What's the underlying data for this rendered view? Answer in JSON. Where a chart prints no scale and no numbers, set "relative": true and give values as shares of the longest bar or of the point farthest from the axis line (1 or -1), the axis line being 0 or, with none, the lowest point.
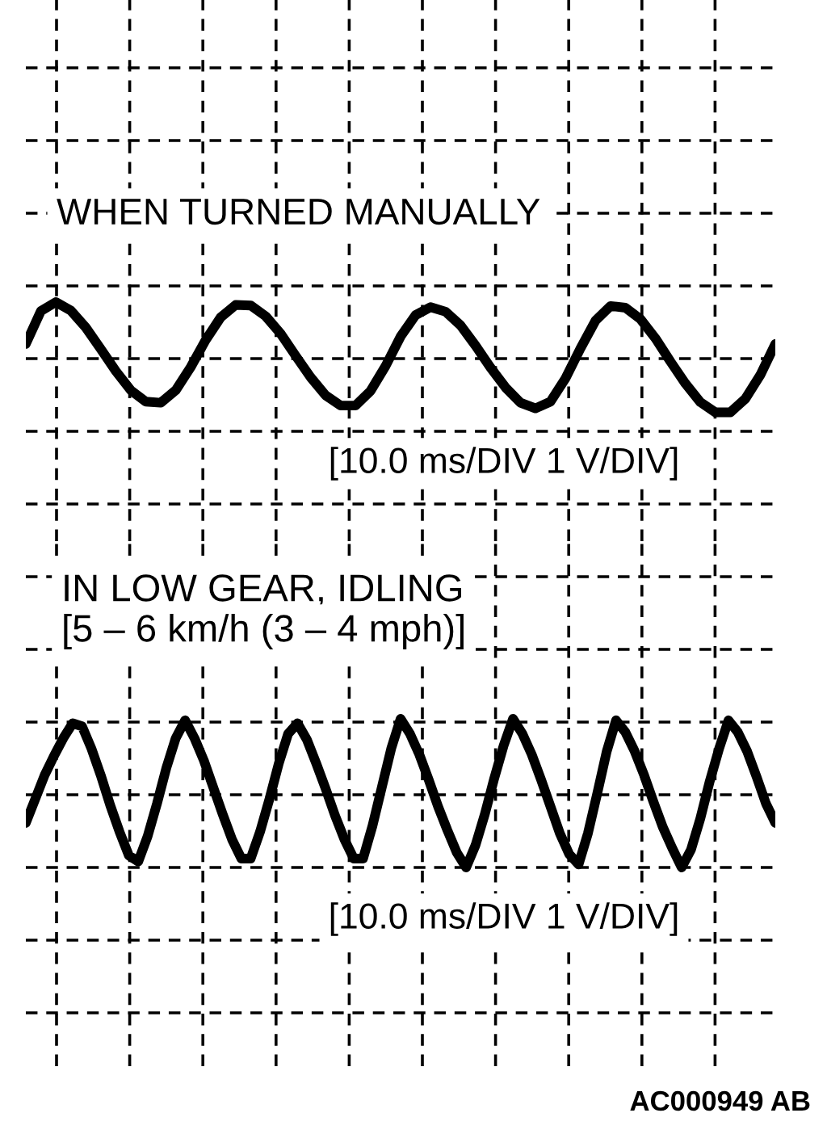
{
  "chart_data": [
    {
      "type": "line",
      "title": "WHEN TURNED MANUALLY",
      "annotations": [
        "[10.0 ms/DIV 1 V/DIV]"
      ],
      "categories": [
        null,
        null,
        null,
        null,
        null,
        null,
        null,
        null,
        null,
        null,
        null,
        null,
        null,
        null,
        null,
        null,
        null,
        null,
        null,
        null,
        null,
        null,
        null,
        null,
        null,
        null,
        null,
        null,
        null,
        null,
        null,
        null,
        null,
        null,
        null,
        null,
        null,
        null,
        null,
        null,
        null,
        null,
        null,
        null,
        null,
        null,
        null,
        null,
        null,
        null,
        null
      ],
      "values": [
        0.26,
        0.84,
        1.0,
        0.85,
        0.55,
        0.17,
        -0.22,
        -0.56,
        -0.76,
        -0.78,
        -0.56,
        -0.15,
        0.33,
        0.73,
        0.95,
        0.94,
        0.75,
        0.44,
        0.05,
        -0.33,
        -0.65,
        -0.83,
        -0.83,
        -0.57,
        -0.13,
        0.39,
        0.77,
        0.91,
        0.83,
        0.59,
        0.23,
        -0.16,
        -0.51,
        -0.78,
        -0.88,
        -0.76,
        -0.35,
        0.18,
        0.67,
        0.93,
        0.9,
        0.7,
        0.36,
        -0.05,
        -0.44,
        -0.77,
        -0.95,
        -0.95,
        -0.71,
        -0.29,
        0.26
      ],
      "color": "#000000",
      "relative": true,
      "grid": true
    },
    {
      "type": "line",
      "title": "IN LOW GEAR, IDLING",
      "subtitle": "[5 – 6 km/h (3 – 4 mph)]",
      "annotations": [
        "[10.0 ms/DIV 1 V/DIV]",
        "AC000949 AB"
      ],
      "categories": [
        null,
        null,
        null,
        null,
        null,
        null,
        null,
        null,
        null,
        null,
        null,
        null,
        null,
        null,
        null,
        null,
        null,
        null,
        null,
        null,
        null,
        null,
        null,
        null,
        null,
        null,
        null,
        null,
        null,
        null,
        null,
        null,
        null,
        null,
        null,
        null,
        null,
        null,
        null,
        null,
        null,
        null,
        null,
        null,
        null,
        null,
        null,
        null,
        null,
        null,
        null,
        null,
        null,
        null,
        null,
        null,
        null,
        null,
        null,
        null,
        null,
        null,
        null,
        null,
        null,
        null,
        null,
        null,
        null,
        null,
        null,
        null,
        null,
        null,
        null,
        null,
        null,
        null,
        null,
        null,
        null
      ],
      "values": [
        0.3,
        0.46,
        0.62,
        0.75,
        0.87,
        0.97,
        0.95,
        0.8,
        0.62,
        0.42,
        0.24,
        0.08,
        0.04,
        0.21,
        0.43,
        0.67,
        0.87,
        0.99,
        0.87,
        0.72,
        0.54,
        0.36,
        0.19,
        0.06,
        0.06,
        0.24,
        0.46,
        0.7,
        0.9,
        0.97,
        0.86,
        0.7,
        0.53,
        0.35,
        0.19,
        0.06,
        0.06,
        0.28,
        0.54,
        0.8,
        1.0,
        0.9,
        0.76,
        0.59,
        0.41,
        0.25,
        0.1,
        0.0,
        0.15,
        0.36,
        0.6,
        0.82,
        1.0,
        0.9,
        0.76,
        0.59,
        0.41,
        0.23,
        0.09,
        0.02,
        0.23,
        0.5,
        0.78,
        0.99,
        0.91,
        0.78,
        0.62,
        0.44,
        0.27,
        0.13,
        0.0,
        0.12,
        0.33,
        0.58,
        0.8,
        0.99,
        0.91,
        0.78,
        0.61,
        0.43,
        0.3
      ],
      "color": "#000000",
      "relative": true,
      "grid": true
    }
  ]
}
